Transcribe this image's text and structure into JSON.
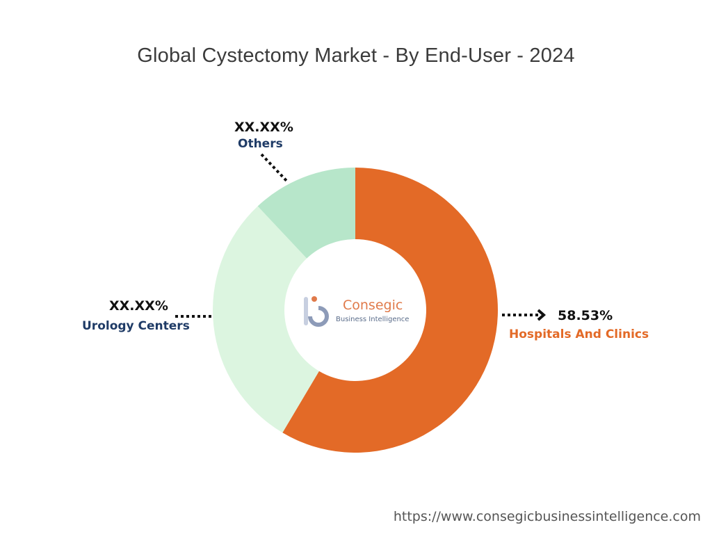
{
  "chart_data": {
    "type": "pie",
    "title": "Global Cystectomy Market - By End-User - 2024",
    "slices": [
      {
        "label": "Hospitals And Clinics",
        "value_label": "58.53%",
        "value": 58.53,
        "color": "#e36a27",
        "label_color": "#e36a27"
      },
      {
        "label": "Urology Centers",
        "value_label": "XX.XX%",
        "value": 29.47,
        "color": "#dcf5e0",
        "label_color": "#1f3b66"
      },
      {
        "label": "Others",
        "value_label": "XX.XX%",
        "value": 12.0,
        "color": "#b7e6ca",
        "label_color": "#1f3b66"
      }
    ],
    "donut": true
  },
  "watermark": {
    "line1": "Consegic",
    "line2": "Business Intelligence"
  },
  "source_url": "https://www.consegicbusinessintelligence.com"
}
